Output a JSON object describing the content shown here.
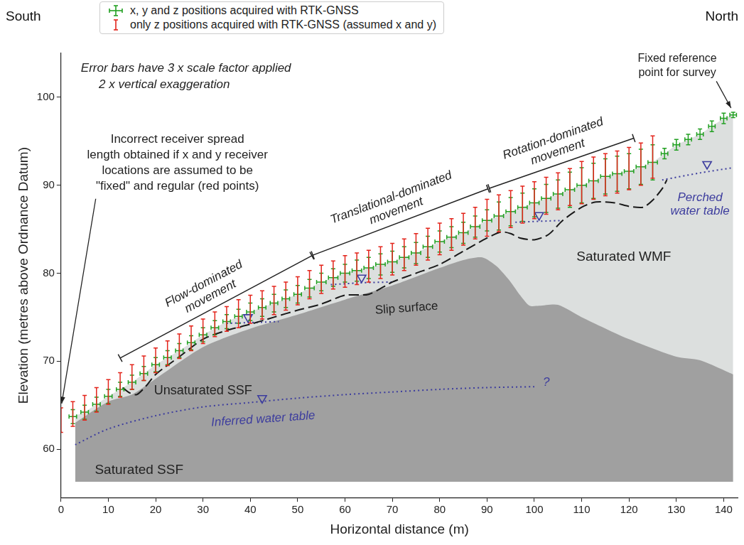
{
  "chart_data": {
    "type": "scatter",
    "x_label": "Horizontal distance (m)",
    "y_label": "Elevation (metres above Ordnance Datum)",
    "xlim": [
      0,
      143
    ],
    "xticks": [
      0,
      10,
      20,
      30,
      40,
      50,
      60,
      70,
      80,
      90,
      100,
      110,
      120,
      130,
      140
    ],
    "ylim": [
      54.5,
      105
    ],
    "yticks": [
      60,
      70,
      80,
      90,
      100
    ],
    "grid": false,
    "legend": "top",
    "series": [
      {
        "name": "x, y and z positions acquired with RTK-GNSS",
        "color": "#22a022",
        "marker": "none",
        "x": [
          2.5,
          5,
          7.5,
          10,
          12.5,
          15,
          17.5,
          20,
          22.5,
          25,
          27.5,
          30,
          32.5,
          35,
          37.5,
          40,
          42.5,
          45,
          47.5,
          50,
          52.5,
          55,
          57.5,
          60,
          62.5,
          65,
          67.5,
          70,
          72.5,
          75,
          77.5,
          80,
          82.5,
          85,
          87.5,
          90,
          92.5,
          95,
          97.5,
          100,
          102.5,
          105,
          107.5,
          110,
          112.5,
          115,
          117.5,
          120,
          122.5,
          125,
          127.5,
          130,
          132.5,
          135,
          137.5,
          140,
          142
        ],
        "values": [
          63.7,
          64.2,
          65.1,
          66.0,
          66.8,
          67.6,
          68.6,
          69.6,
          70.4,
          71.2,
          72.1,
          73.0,
          73.8,
          74.5,
          75.1,
          75.6,
          76.1,
          76.6,
          77.1,
          77.6,
          78.3,
          79.0,
          79.5,
          80.0,
          80.3,
          80.6,
          81.0,
          81.3,
          81.8,
          82.3,
          83.0,
          83.6,
          84.1,
          84.6,
          85.3,
          86.0,
          86.5,
          87.0,
          87.5,
          88.0,
          88.5,
          89.0,
          89.5,
          90.0,
          90.5,
          91.0,
          91.3,
          91.6,
          92.1,
          92.6,
          93.6,
          94.6,
          95.2,
          95.8,
          96.7,
          97.6,
          98.0
        ],
        "x_error": [
          0.8,
          0.8,
          0.8,
          0.8,
          0.8,
          0.8,
          0.8,
          0.8,
          0.8,
          0.8,
          0.8,
          0.8,
          0.8,
          0.8,
          0.8,
          0.8,
          0.8,
          0.8,
          0.8,
          0.8,
          1.0,
          1.0,
          1.0,
          1.0,
          1.0,
          1.0,
          1.0,
          1.0,
          1.0,
          1.0,
          1.0,
          1.0,
          1.0,
          1.0,
          1.0,
          1.0,
          1.0,
          1.0,
          1.0,
          1.0,
          1.0,
          1.0,
          1.0,
          1.0,
          1.0,
          1.0,
          1.0,
          1.0,
          1.0,
          1.0,
          0.7,
          0.7,
          0.7,
          0.7,
          0.7,
          0.7,
          0.7
        ],
        "z_error": [
          0.8,
          0.8,
          0.8,
          0.8,
          0.8,
          0.8,
          0.8,
          0.8,
          0.8,
          0.8,
          0.8,
          0.8,
          0.8,
          0.8,
          0.8,
          1.0,
          1.0,
          1.0,
          1.0,
          1.0,
          1.0,
          1.0,
          1.0,
          1.0,
          1.2,
          1.2,
          1.2,
          1.2,
          1.2,
          1.2,
          1.2,
          1.2,
          1.2,
          1.2,
          1.2,
          1.2,
          1.6,
          1.6,
          1.6,
          1.6,
          1.6,
          1.6,
          2.0,
          2.0,
          2.0,
          2.0,
          2.0,
          2.0,
          2.0,
          2.0,
          0.6,
          0.6,
          0.6,
          0.6,
          0.6,
          0.6,
          0.3
        ]
      },
      {
        "name": "only z positions acquired with RTK-GNSS (assumed x and y)",
        "color": "#e3241b",
        "marker": "none",
        "x": [
          0,
          2.5,
          5,
          7.5,
          10,
          12.5,
          15,
          17.5,
          20,
          22.5,
          25,
          27.5,
          30,
          32.5,
          35,
          37.5,
          40,
          42.5,
          45,
          47.5,
          50,
          52.5,
          55,
          57.5,
          60,
          62.5,
          65,
          67.5,
          70,
          72.5,
          75,
          77.5,
          80,
          82.5,
          85,
          87.5,
          90,
          92.5,
          95,
          97.5,
          100,
          102.5,
          105,
          107.5,
          110,
          112.5,
          115,
          117.5,
          120,
          122.5,
          125
        ],
        "values": [
          63.3,
          64.0,
          64.7,
          65.6,
          66.5,
          67.3,
          68.2,
          69.2,
          70.1,
          70.9,
          71.7,
          72.6,
          73.4,
          74.2,
          74.8,
          75.4,
          75.9,
          76.4,
          76.9,
          77.4,
          78.0,
          78.7,
          79.3,
          79.8,
          80.2,
          80.5,
          80.8,
          81.2,
          81.6,
          82.1,
          82.7,
          83.3,
          83.9,
          84.4,
          85.0,
          85.7,
          86.3,
          86.8,
          87.3,
          87.8,
          88.3,
          88.8,
          89.3,
          89.8,
          90.3,
          90.8,
          91.2,
          91.5,
          91.9,
          92.4,
          93.2
        ],
        "z_error": [
          1.4,
          1.4,
          1.4,
          1.4,
          1.4,
          1.4,
          1.4,
          1.4,
          1.4,
          1.4,
          1.4,
          1.4,
          1.4,
          1.4,
          1.4,
          1.6,
          1.6,
          1.6,
          1.6,
          1.6,
          1.6,
          1.6,
          1.6,
          1.6,
          1.8,
          1.8,
          1.8,
          1.8,
          1.8,
          1.8,
          1.8,
          1.8,
          1.8,
          1.8,
          1.8,
          1.8,
          2.1,
          2.1,
          2.1,
          2.1,
          2.1,
          2.1,
          2.1,
          2.1,
          2.4,
          2.4,
          2.4,
          2.4,
          2.4,
          2.4,
          2.4
        ]
      }
    ],
    "base_elevation": 56.3,
    "surface_profile": {
      "color": "#dcdfde",
      "x": [
        3,
        5,
        10,
        15,
        20,
        25,
        30,
        35,
        40,
        45,
        50,
        55,
        60,
        65,
        70,
        75,
        80,
        85,
        90,
        95,
        100,
        105,
        110,
        115,
        120,
        125,
        130,
        135,
        140,
        142
      ],
      "y": [
        63.8,
        64.2,
        66.0,
        67.6,
        69.6,
        71.2,
        73.0,
        74.5,
        75.6,
        76.6,
        77.6,
        79.0,
        80.0,
        80.6,
        81.3,
        82.3,
        83.6,
        84.6,
        86.0,
        87.0,
        88.0,
        89.0,
        90.0,
        91.0,
        91.6,
        92.6,
        94.6,
        95.8,
        97.6,
        98.0
      ]
    },
    "ssf_top": {
      "color": "#a0a0a0",
      "x": [
        3,
        10,
        15,
        20,
        30,
        40,
        50,
        60,
        70,
        80,
        85,
        89,
        92,
        95,
        97,
        99,
        101,
        105,
        110,
        120,
        130,
        135,
        142
      ],
      "y": [
        63.0,
        65.4,
        66.2,
        68.0,
        71.6,
        73.7,
        75.3,
        77.0,
        78.6,
        80.6,
        81.5,
        81.8,
        80.8,
        79.0,
        77.5,
        76.3,
        76.3,
        76.4,
        75.0,
        72.5,
        70.5,
        70.1,
        68.5
      ]
    },
    "slip_surface": {
      "color": "#1a1a1a",
      "line_style": "dashed",
      "x": [
        13,
        14.5,
        16,
        18,
        20,
        25,
        30,
        35,
        40,
        45,
        50,
        55,
        60,
        65,
        70,
        75,
        80,
        85,
        90,
        93,
        95,
        97,
        100,
        103,
        106,
        110,
        113,
        117,
        120,
        123,
        125,
        127,
        128
      ],
      "y": [
        67.0,
        66.4,
        66.2,
        67.2,
        68.5,
        70.5,
        72.5,
        73.5,
        74.2,
        75.0,
        75.8,
        76.5,
        77.5,
        77.6,
        79.0,
        80.0,
        81.0,
        82.5,
        84.0,
        84.7,
        84.5,
        84.0,
        83.8,
        84.4,
        86.0,
        87.5,
        88.1,
        88.0,
        87.6,
        87.5,
        88.3,
        89.6,
        90.6
      ]
    },
    "inferred_water_table": {
      "color": "#3d3d9e",
      "line_style": "dotted",
      "x": [
        3,
        10,
        20,
        30,
        40,
        50,
        60,
        70,
        80,
        90,
        100
      ],
      "y": [
        60.5,
        62.3,
        63.8,
        64.8,
        65.3,
        65.8,
        66.2,
        66.5,
        66.8,
        67.0,
        67.1
      ]
    },
    "perched_water_tables": {
      "color": "#3d3d9e",
      "line_style": "dotted",
      "segments": [
        {
          "x": [
            35,
            46
          ],
          "y": [
            74.3,
            74.5
          ]
        },
        {
          "x": [
            57,
            63,
            70
          ],
          "y": [
            78.7,
            78.9,
            79.0
          ]
        },
        {
          "x": [
            96,
            106
          ],
          "y": [
            85.8,
            86.0
          ]
        },
        {
          "x": [
            127,
            135,
            142
          ],
          "y": [
            90.6,
            91.4,
            92.0
          ]
        }
      ]
    },
    "water_level_markers": {
      "color": "#3d3d9e",
      "marker": "triangle_down",
      "x": [
        39.5,
        63.5,
        101,
        136.5,
        42.5
      ],
      "y": [
        75.0,
        79.5,
        86.6,
        92.4,
        65.8
      ]
    },
    "zones": [
      {
        "label": "Flow-dominated\nmovement",
        "x_start": 12.5,
        "x_end": 53
      },
      {
        "label": "Translational-dominated\nmovement",
        "x_start": 53.2,
        "x_end": 90.2
      },
      {
        "label": "Rotation-dominated\nmovement",
        "x_start": 90.5,
        "x_end": 121
      }
    ],
    "annotations": {
      "south": "South",
      "north": "North",
      "error_bars": "Error bars have 3 x scale factor applied",
      "exaggeration": "2 x vertical exaggeration",
      "receiver_spread": "Incorrect receiver spread\nlength obtained if x and y receiver\nlocations are assumed to be\n\"fixed\" and regular (red points)",
      "reference_point": "Fixed reference\npoint for survey",
      "slip_surface": "Slip surface",
      "perched_water_table": "Perched\nwater table",
      "saturated_wmf": "Saturated WMF",
      "unsaturated_ssf": "Unsaturated SSF",
      "inferred_water_table": "Inferred water table",
      "uncertain": "?",
      "saturated_ssf": "Saturated SSF"
    }
  }
}
